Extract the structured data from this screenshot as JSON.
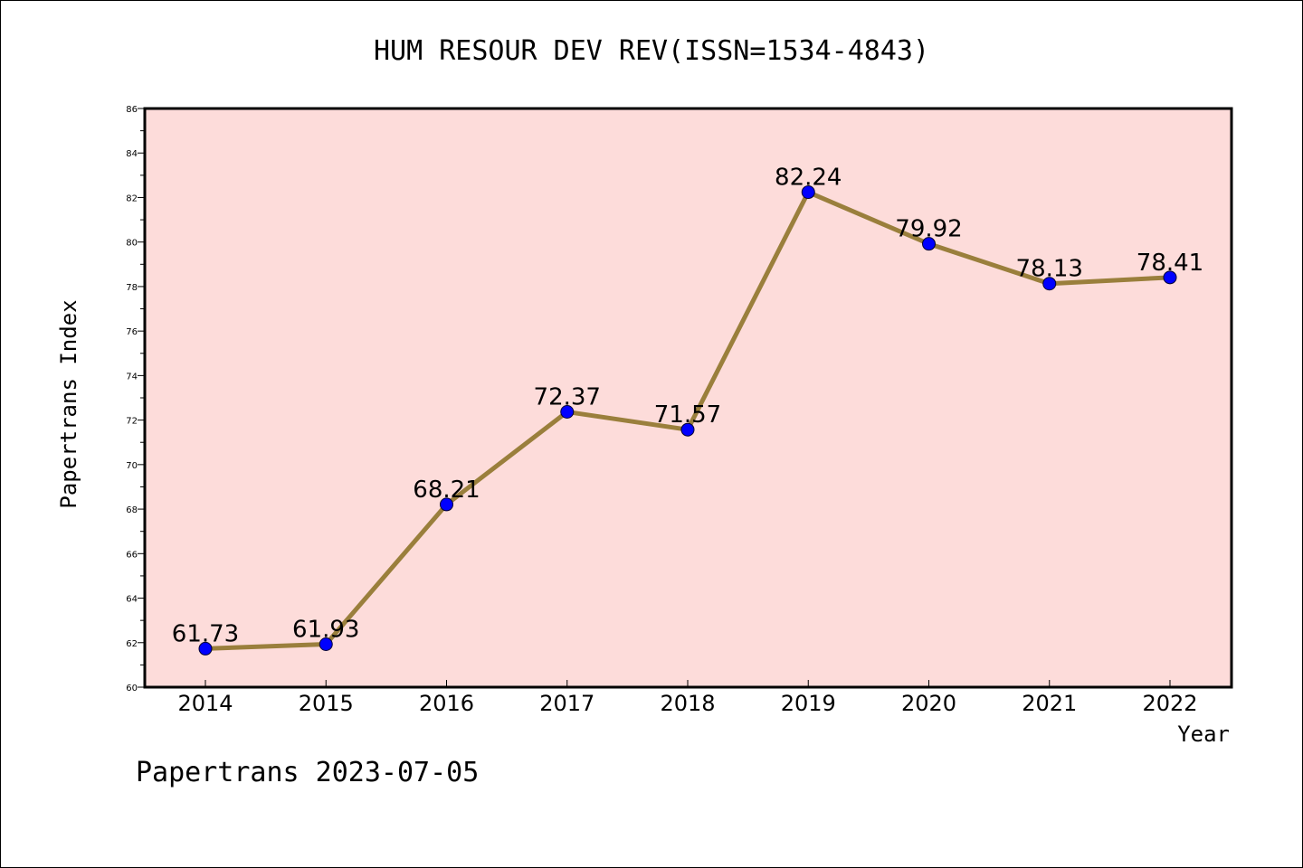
{
  "chart_data": {
    "type": "line",
    "title": "HUM RESOUR DEV REV(ISSN=1534-4843)",
    "xlabel": "Year",
    "ylabel": "Papertrans Index",
    "categories": [
      "2014",
      "2015",
      "2016",
      "2017",
      "2018",
      "2019",
      "2020",
      "2021",
      "2022"
    ],
    "values": [
      61.73,
      61.93,
      68.21,
      72.37,
      71.57,
      82.24,
      79.92,
      78.13,
      78.41
    ],
    "data_labels": [
      "61.73",
      "61.93",
      "68.21",
      "72.37",
      "71.57",
      "82.24",
      "79.92",
      "78.13",
      "78.41"
    ],
    "ylim": [
      60,
      86
    ],
    "yticks": [
      "60",
      "62",
      "64",
      "66",
      "68",
      "70",
      "72",
      "74",
      "76",
      "78",
      "80",
      "82",
      "84",
      "86"
    ],
    "grid": false,
    "legend": "none",
    "colors": {
      "plot_background": "#fddcda",
      "line": "#9a7f3c",
      "marker": "#0000ff"
    }
  },
  "footer": "Papertrans 2023-07-05"
}
